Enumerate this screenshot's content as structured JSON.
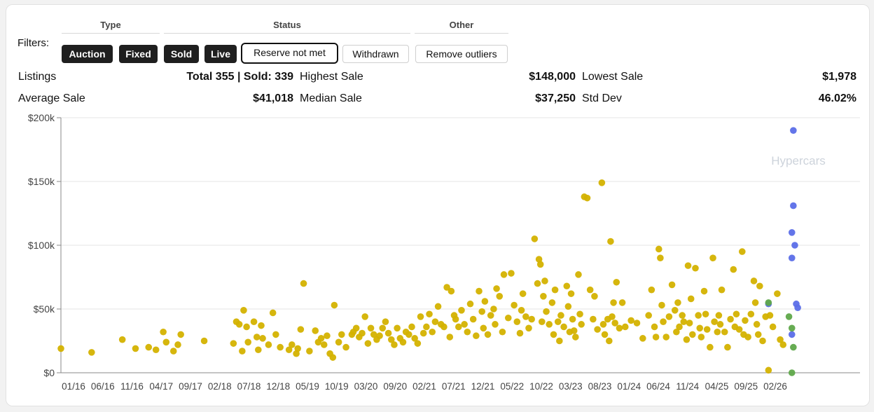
{
  "filters": {
    "label": "Filters:",
    "groups": [
      {
        "title": "Type"
      },
      {
        "title": "Status"
      },
      {
        "title": "Other"
      }
    ],
    "buttons": {
      "auction": "Auction",
      "fixed": "Fixed",
      "sold": "Sold",
      "live": "Live",
      "reserve_not_met": "Reserve not met",
      "withdrawn": "Withdrawn",
      "remove_outliers": "Remove outliers"
    }
  },
  "stats": {
    "listings_label": "Listings",
    "listings_value": "Total 355 | Sold: 339",
    "highest_label": "Highest Sale",
    "highest_value": "$148,000",
    "lowest_label": "Lowest Sale",
    "lowest_value": "$1,978",
    "average_label": "Average Sale",
    "average_value": "$41,018",
    "median_label": "Median Sale",
    "median_value": "$37,250",
    "stddev_label": "Std Dev",
    "stddev_value": "46.02%"
  },
  "watermark": "Hypercars",
  "colors": {
    "sold": "#d4b200",
    "live": "#5b6ee8",
    "reserve": "#5fa84a"
  },
  "chart_data": {
    "type": "scatter",
    "y_ticks": [
      "$0",
      "$50k",
      "$100k",
      "$150k",
      "$200k"
    ],
    "ylim": [
      0,
      200000
    ],
    "x_ticks": [
      "01/16",
      "06/16",
      "11/16",
      "04/17",
      "09/17",
      "02/18",
      "07/18",
      "12/18",
      "05/19",
      "10/19",
      "03/20",
      "09/20",
      "02/21",
      "07/21",
      "12/21",
      "05/22",
      "10/22",
      "03/23",
      "08/23",
      "01/24",
      "06/24",
      "11/24",
      "04/25",
      "09/25",
      "02/26"
    ],
    "grid": true,
    "series": [
      {
        "color": "#d4b200",
        "points": [
          [
            0,
            19000
          ],
          [
            1.05,
            16000
          ],
          [
            2.1,
            26000
          ],
          [
            2.55,
            19000
          ],
          [
            3.0,
            20000
          ],
          [
            3.25,
            18000
          ],
          [
            3.5,
            32000
          ],
          [
            3.6,
            24000
          ],
          [
            3.85,
            17000
          ],
          [
            4.0,
            22000
          ],
          [
            4.1,
            30000
          ],
          [
            4.9,
            25000
          ],
          [
            5.9,
            23000
          ],
          [
            6.0,
            40000
          ],
          [
            6.1,
            38000
          ],
          [
            6.2,
            17000
          ],
          [
            6.25,
            49000
          ],
          [
            6.35,
            36000
          ],
          [
            6.4,
            24000
          ],
          [
            6.6,
            40000
          ],
          [
            6.7,
            28000
          ],
          [
            6.75,
            18000
          ],
          [
            6.85,
            37000
          ],
          [
            6.9,
            27000
          ],
          [
            7.1,
            22000
          ],
          [
            7.25,
            47000
          ],
          [
            7.35,
            30000
          ],
          [
            7.5,
            20000
          ],
          [
            7.8,
            18000
          ],
          [
            7.9,
            22000
          ],
          [
            8.05,
            15000
          ],
          [
            8.1,
            19000
          ],
          [
            8.2,
            34000
          ],
          [
            8.3,
            70000
          ],
          [
            8.5,
            17000
          ],
          [
            8.7,
            33000
          ],
          [
            8.8,
            24000
          ],
          [
            8.9,
            27000
          ],
          [
            9.0,
            22000
          ],
          [
            9.1,
            29000
          ],
          [
            9.2,
            15000
          ],
          [
            9.3,
            12000
          ],
          [
            9.35,
            53000
          ],
          [
            9.5,
            24000
          ],
          [
            9.6,
            30000
          ],
          [
            9.75,
            20000
          ],
          [
            9.95,
            30000
          ],
          [
            10.0,
            32000
          ],
          [
            10.1,
            35000
          ],
          [
            10.2,
            28000
          ],
          [
            10.3,
            31000
          ],
          [
            10.4,
            44000
          ],
          [
            10.5,
            23000
          ],
          [
            10.6,
            35000
          ],
          [
            10.7,
            30000
          ],
          [
            10.8,
            26000
          ],
          [
            10.9,
            29000
          ],
          [
            11.0,
            35000
          ],
          [
            11.1,
            40000
          ],
          [
            11.2,
            31000
          ],
          [
            11.3,
            26000
          ],
          [
            11.4,
            22000
          ],
          [
            11.5,
            35000
          ],
          [
            11.6,
            27000
          ],
          [
            11.7,
            24000
          ],
          [
            11.8,
            32000
          ],
          [
            11.9,
            30000
          ],
          [
            12.0,
            36000
          ],
          [
            12.1,
            27000
          ],
          [
            12.2,
            23000
          ],
          [
            12.3,
            44000
          ],
          [
            12.4,
            31000
          ],
          [
            12.5,
            36000
          ],
          [
            12.6,
            46000
          ],
          [
            12.7,
            32000
          ],
          [
            12.8,
            40000
          ],
          [
            12.9,
            52000
          ],
          [
            13.0,
            38000
          ],
          [
            13.1,
            36000
          ],
          [
            13.2,
            67000
          ],
          [
            13.3,
            28000
          ],
          [
            13.35,
            64000
          ],
          [
            13.45,
            45000
          ],
          [
            13.5,
            42000
          ],
          [
            13.6,
            36000
          ],
          [
            13.7,
            49000
          ],
          [
            13.8,
            38000
          ],
          [
            13.9,
            32000
          ],
          [
            14.0,
            54000
          ],
          [
            14.1,
            42000
          ],
          [
            14.2,
            29000
          ],
          [
            14.3,
            64000
          ],
          [
            14.4,
            48000
          ],
          [
            14.45,
            35000
          ],
          [
            14.5,
            56000
          ],
          [
            14.6,
            30000
          ],
          [
            14.7,
            45000
          ],
          [
            14.8,
            50000
          ],
          [
            14.85,
            38000
          ],
          [
            14.9,
            66000
          ],
          [
            15.0,
            60000
          ],
          [
            15.1,
            32000
          ],
          [
            15.15,
            77000
          ],
          [
            15.3,
            43000
          ],
          [
            15.4,
            78000
          ],
          [
            15.5,
            53000
          ],
          [
            15.6,
            40000
          ],
          [
            15.7,
            31000
          ],
          [
            15.75,
            49000
          ],
          [
            15.8,
            62000
          ],
          [
            15.9,
            44000
          ],
          [
            16.0,
            35000
          ],
          [
            16.1,
            42000
          ],
          [
            16.2,
            105000
          ],
          [
            16.3,
            70000
          ],
          [
            16.35,
            89000
          ],
          [
            16.4,
            85000
          ],
          [
            16.45,
            40000
          ],
          [
            16.5,
            60000
          ],
          [
            16.55,
            72000
          ],
          [
            16.6,
            48000
          ],
          [
            16.7,
            38000
          ],
          [
            16.8,
            55000
          ],
          [
            16.85,
            30000
          ],
          [
            16.9,
            65000
          ],
          [
            17.0,
            40000
          ],
          [
            17.05,
            25000
          ],
          [
            17.1,
            45000
          ],
          [
            17.2,
            36000
          ],
          [
            17.3,
            68000
          ],
          [
            17.35,
            52000
          ],
          [
            17.4,
            32000
          ],
          [
            17.45,
            62000
          ],
          [
            17.5,
            42000
          ],
          [
            17.55,
            33000
          ],
          [
            17.6,
            28000
          ],
          [
            17.7,
            77000
          ],
          [
            17.75,
            46000
          ],
          [
            17.8,
            38000
          ],
          [
            17.9,
            138000
          ],
          [
            18.0,
            137000
          ],
          [
            18.1,
            65000
          ],
          [
            18.2,
            42000
          ],
          [
            18.25,
            60000
          ],
          [
            18.35,
            34000
          ],
          [
            18.5,
            149000
          ],
          [
            18.55,
            38000
          ],
          [
            18.6,
            30000
          ],
          [
            18.7,
            42000
          ],
          [
            18.75,
            25000
          ],
          [
            18.8,
            103000
          ],
          [
            18.85,
            44000
          ],
          [
            18.9,
            55000
          ],
          [
            18.95,
            39000
          ],
          [
            19.0,
            71000
          ],
          [
            19.1,
            35000
          ],
          [
            19.2,
            55000
          ],
          [
            19.3,
            36000
          ],
          [
            19.5,
            41000
          ],
          [
            19.7,
            39000
          ],
          [
            19.9,
            27000
          ],
          [
            20.1,
            45000
          ],
          [
            20.2,
            65000
          ],
          [
            20.3,
            36000
          ],
          [
            20.35,
            28000
          ],
          [
            20.45,
            97000
          ],
          [
            20.5,
            90000
          ],
          [
            20.55,
            53000
          ],
          [
            20.6,
            40000
          ],
          [
            20.7,
            28000
          ],
          [
            20.8,
            44000
          ],
          [
            20.9,
            69000
          ],
          [
            21.0,
            49000
          ],
          [
            21.05,
            32000
          ],
          [
            21.1,
            55000
          ],
          [
            21.15,
            36000
          ],
          [
            21.25,
            45000
          ],
          [
            21.3,
            40000
          ],
          [
            21.4,
            26000
          ],
          [
            21.45,
            84000
          ],
          [
            21.5,
            39000
          ],
          [
            21.55,
            58000
          ],
          [
            21.6,
            30000
          ],
          [
            21.7,
            82000
          ],
          [
            21.8,
            45000
          ],
          [
            21.85,
            35000
          ],
          [
            21.9,
            28000
          ],
          [
            22.0,
            64000
          ],
          [
            22.05,
            46000
          ],
          [
            22.1,
            34000
          ],
          [
            22.2,
            20000
          ],
          [
            22.3,
            90000
          ],
          [
            22.35,
            40000
          ],
          [
            22.45,
            32000
          ],
          [
            22.5,
            45000
          ],
          [
            22.55,
            38000
          ],
          [
            22.6,
            65000
          ],
          [
            22.7,
            32000
          ],
          [
            22.8,
            20000
          ],
          [
            22.9,
            42000
          ],
          [
            23.0,
            81000
          ],
          [
            23.05,
            36000
          ],
          [
            23.1,
            46000
          ],
          [
            23.2,
            34000
          ],
          [
            23.3,
            95000
          ],
          [
            23.35,
            30000
          ],
          [
            23.4,
            41000
          ],
          [
            23.5,
            28000
          ],
          [
            23.6,
            46000
          ],
          [
            23.7,
            72000
          ],
          [
            23.75,
            55000
          ],
          [
            23.8,
            38000
          ],
          [
            23.85,
            30000
          ],
          [
            23.9,
            68000
          ],
          [
            24.0,
            25000
          ],
          [
            24.1,
            44000
          ],
          [
            24.2,
            2000
          ],
          [
            24.25,
            45000
          ],
          [
            24.35,
            36000
          ],
          [
            24.5,
            62000
          ],
          [
            24.6,
            26000
          ],
          [
            24.7,
            22000
          ]
        ]
      },
      {
        "color": "#5b6ee8",
        "points": [
          [
            25.05,
            190000
          ],
          [
            25.05,
            131000
          ],
          [
            25.0,
            110000
          ],
          [
            25.1,
            100000
          ],
          [
            25.0,
            90000
          ],
          [
            25.15,
            54000
          ],
          [
            25.2,
            51000
          ],
          [
            24.2,
            54000
          ],
          [
            25.0,
            30000
          ]
        ]
      },
      {
        "color": "#5fa84a",
        "points": [
          [
            24.2,
            55000
          ],
          [
            24.9,
            44000
          ],
          [
            25.0,
            35000
          ],
          [
            25.05,
            20000
          ],
          [
            25.0,
            0
          ]
        ]
      }
    ]
  }
}
